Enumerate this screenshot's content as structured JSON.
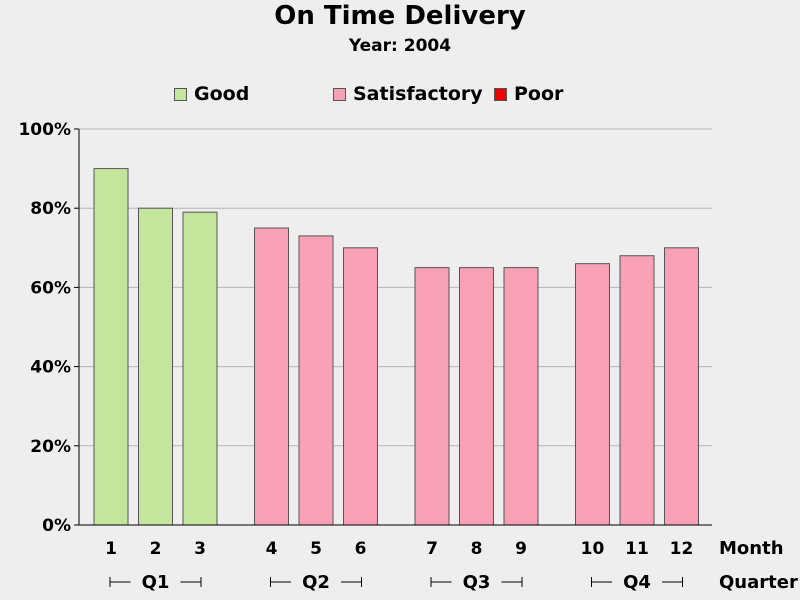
{
  "chart_data": {
    "type": "bar",
    "title": "On Time Delivery",
    "subtitle": "Year: 2004",
    "xlabel": "Month",
    "secondary_xlabel": "Quarter",
    "ylim": [
      0,
      100
    ],
    "ytick_labels": [
      "0%",
      "20%",
      "40%",
      "60%",
      "80%",
      "100%"
    ],
    "yticks": [
      0,
      20,
      40,
      60,
      80,
      100
    ],
    "grid": true,
    "categories": [
      "1",
      "2",
      "3",
      "4",
      "5",
      "6",
      "7",
      "8",
      "9",
      "10",
      "11",
      "12"
    ],
    "values": [
      90,
      80,
      79,
      75,
      73,
      70,
      65,
      65,
      65,
      66,
      68,
      70
    ],
    "ratings": [
      "Good",
      "Good",
      "Good",
      "Satisfactory",
      "Satisfactory",
      "Satisfactory",
      "Satisfactory",
      "Satisfactory",
      "Satisfactory",
      "Satisfactory",
      "Satisfactory",
      "Satisfactory"
    ],
    "groups": [
      {
        "label": "Q1",
        "months": [
          "1",
          "2",
          "3"
        ]
      },
      {
        "label": "Q2",
        "months": [
          "4",
          "5",
          "6"
        ]
      },
      {
        "label": "Q3",
        "months": [
          "7",
          "8",
          "9"
        ]
      },
      {
        "label": "Q4",
        "months": [
          "10",
          "11",
          "12"
        ]
      }
    ],
    "legend": [
      {
        "label": "Good",
        "color": "#c4e59c"
      },
      {
        "label": "Satisfactory",
        "color": "#f8a0b6"
      },
      {
        "label": "Poor",
        "color": "#ee0000"
      }
    ],
    "legend_position": "top"
  }
}
